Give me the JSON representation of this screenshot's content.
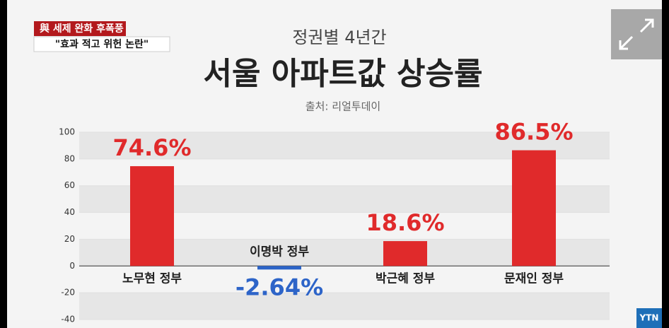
{
  "header": {
    "tag": "與 세제 완화 후폭풍",
    "quote": "\"효과 적고 위헌 논란\""
  },
  "logo": "YTN",
  "chart_data": {
    "type": "bar",
    "subtitle": "정권별 4년간",
    "title": "서울 아파트값 상승률",
    "source": "출처: 리얼투데이",
    "categories": [
      "노무현 정부",
      "이명박 정부",
      "박근혜 정부",
      "문재인 정부"
    ],
    "values": [
      74.6,
      -2.64,
      18.6,
      86.5
    ],
    "value_labels": [
      "74.6%",
      "-2.64%",
      "18.6%",
      "86.5%"
    ],
    "colors": [
      "#e02a2b",
      "#2d64c8",
      "#e02a2b",
      "#e02a2b"
    ],
    "ylim": [
      -40,
      100
    ],
    "yticks": [
      -40,
      -20,
      0,
      20,
      40,
      60,
      80,
      100
    ],
    "grid": true
  }
}
